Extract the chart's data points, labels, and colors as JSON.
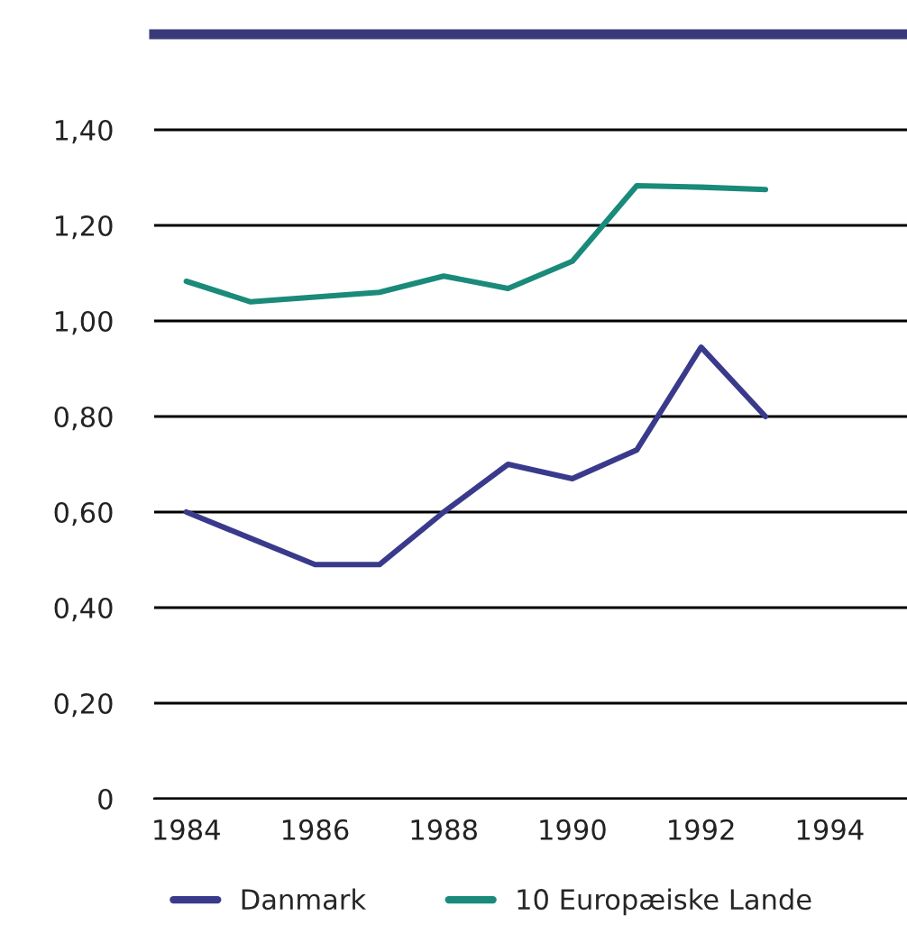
{
  "chart_data": {
    "type": "line",
    "x": [
      1984,
      1985,
      1986,
      1987,
      1988,
      1989,
      1990,
      1991,
      1992,
      1993
    ],
    "series": [
      {
        "name": "Danmark",
        "color": "#3a3a8c",
        "values": [
          0.6,
          0.545,
          0.49,
          0.49,
          0.6,
          0.7,
          0.67,
          0.73,
          0.945,
          0.8
        ]
      },
      {
        "name": "10 Europæiske Lande",
        "color": "#1a8a7a",
        "values": [
          1.083,
          1.04,
          1.05,
          1.06,
          1.094,
          1.068,
          1.125,
          1.283,
          1.28,
          1.275
        ]
      }
    ],
    "xlim": [
      1983.5,
      1995.2
    ],
    "xticks": [
      1984,
      1986,
      1988,
      1990,
      1992,
      1994
    ],
    "ylim": [
      0,
      1.6
    ],
    "yticks": [
      0,
      {
        "value": 0.2,
        "label": "0,20"
      },
      {
        "value": 0.4,
        "label": "0,40"
      },
      {
        "value": 0.6,
        "label": "0,60"
      },
      {
        "value": 0.8,
        "label": "0,80"
      },
      {
        "value": 1.0,
        "label": "1,00"
      },
      {
        "value": 1.2,
        "label": "1,20"
      },
      {
        "value": 1.4,
        "label": "1,40"
      }
    ],
    "grid": "y",
    "legend": "bottom",
    "marker": "none",
    "line_style": "solid"
  }
}
